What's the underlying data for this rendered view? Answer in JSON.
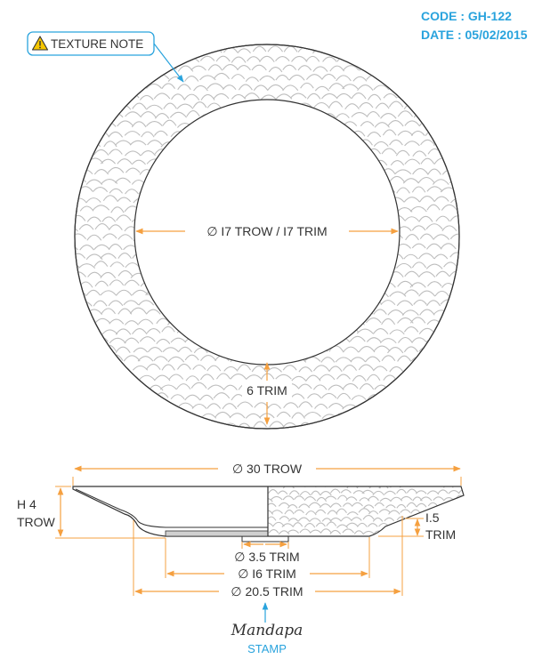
{
  "header": {
    "code": "CODE : GH-122",
    "date": "DATE : 05/02/2015"
  },
  "texture_note": "TEXTURE NOTE",
  "top_view": {
    "inner_diameter": "∅ I7 TROW / I7 TRIM",
    "rim_width": "6 TRIM"
  },
  "side_view": {
    "outer_diameter": "∅ 30 TROW",
    "height_value": "H 4",
    "height_unit": "TROW",
    "base_height_value": "I.5",
    "base_height_unit": "TRIM",
    "base_diameter": "∅ 3.5 TRIM",
    "foot_diameter": "∅ I6 TRIM",
    "base_outer_diameter": "∅ 20.5 TRIM"
  },
  "logo": "Mandapa",
  "stamp_label": "STAMP",
  "colors": {
    "accent": "#29a3dd",
    "dimension": "#f5a040",
    "warning": "#f6c600",
    "line": "#333333",
    "texture": "#bdbdbd"
  }
}
